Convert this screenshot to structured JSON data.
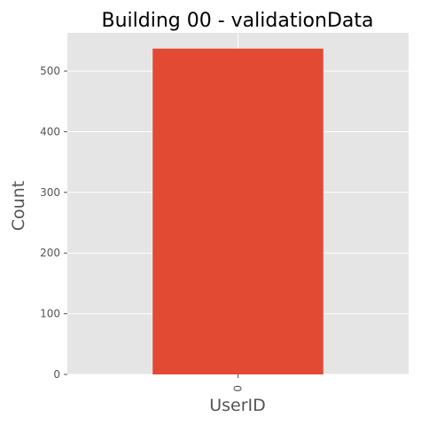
{
  "chart_data": {
    "type": "bar",
    "title": "Building 00 - validationData",
    "xlabel": "UserID",
    "ylabel": "Count",
    "categories": [
      "0"
    ],
    "values": [
      537
    ],
    "ylim": [
      0,
      563
    ],
    "yticks": [
      0,
      100,
      200,
      300,
      400,
      500
    ],
    "grid": true,
    "colors": {
      "bar": "#E24A33",
      "plot_background": "#E5E5E5",
      "grid": "#FFFFFF",
      "text": "#555555"
    }
  }
}
